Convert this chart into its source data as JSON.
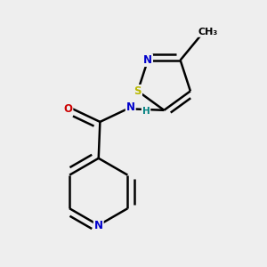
{
  "background_color": "#eeeeee",
  "atom_colors": {
    "C": "#000000",
    "N": "#0000cc",
    "O": "#cc0000",
    "S": "#b8b800",
    "H": "#008080"
  },
  "bond_color": "#000000",
  "bond_width": 1.8
}
